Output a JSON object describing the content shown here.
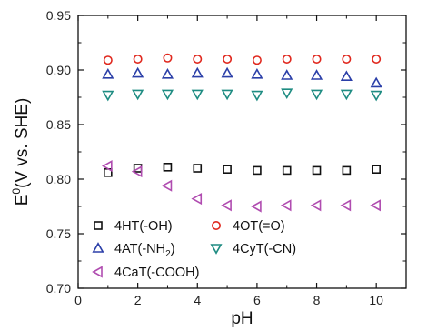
{
  "chart_data": {
    "type": "scatter",
    "xlabel": "pH",
    "ylabel": "E0(V vs. SHE)",
    "ylabel_parts": {
      "main": "E",
      "sup": "0",
      "rest": "(V vs. SHE)"
    },
    "xlim": [
      0,
      11
    ],
    "ylim": [
      0.7,
      0.95
    ],
    "xticks": [
      0,
      2,
      4,
      6,
      8,
      10
    ],
    "yticks": [
      0.7,
      0.75,
      0.8,
      0.85,
      0.9,
      0.95
    ],
    "ytick_labels": [
      "0.70",
      "0.75",
      "0.80",
      "0.85",
      "0.90",
      "0.95"
    ],
    "grid": false,
    "legend_position": "bottom-left",
    "series": [
      {
        "name": "4HT(-OH)",
        "name_parts": {
          "main": "4HT(-OH)",
          "sub": "",
          "rest": ""
        },
        "marker": "square",
        "color": "#111111",
        "x": [
          1,
          2,
          3,
          4,
          5,
          6,
          7,
          8,
          9,
          10
        ],
        "y": [
          0.806,
          0.81,
          0.811,
          0.81,
          0.809,
          0.808,
          0.808,
          0.808,
          0.808,
          0.809
        ]
      },
      {
        "name": "4OT(=O)",
        "name_parts": {
          "main": "4OT(=O)",
          "sub": "",
          "rest": ""
        },
        "marker": "circle",
        "color": "#e0281e",
        "x": [
          1,
          2,
          3,
          4,
          5,
          6,
          7,
          8,
          9,
          10
        ],
        "y": [
          0.909,
          0.91,
          0.911,
          0.91,
          0.91,
          0.909,
          0.91,
          0.91,
          0.91,
          0.91
        ]
      },
      {
        "name": "4AT(-NH2)",
        "name_parts": {
          "main": "4AT(-NH",
          "sub": "2",
          "rest": ")"
        },
        "marker": "triangle-up",
        "color": "#2b3fa8",
        "x": [
          1,
          2,
          3,
          4,
          5,
          6,
          7,
          8,
          9,
          10
        ],
        "y": [
          0.896,
          0.897,
          0.896,
          0.897,
          0.897,
          0.896,
          0.895,
          0.895,
          0.894,
          0.888
        ]
      },
      {
        "name": "4CyT(-CN)",
        "name_parts": {
          "main": "4CyT(-CN)",
          "sub": "",
          "rest": ""
        },
        "marker": "triangle-down",
        "color": "#1e8c82",
        "x": [
          1,
          2,
          3,
          4,
          5,
          6,
          7,
          8,
          9,
          10
        ],
        "y": [
          0.877,
          0.878,
          0.878,
          0.878,
          0.878,
          0.877,
          0.879,
          0.878,
          0.878,
          0.877
        ]
      },
      {
        "name": "4CaT(-COOH)",
        "name_parts": {
          "main": "4CaT(-COOH)",
          "sub": "",
          "rest": ""
        },
        "marker": "triangle-left",
        "color": "#b04cb0",
        "x": [
          1,
          2,
          3,
          4,
          5,
          6,
          7,
          8,
          9,
          10
        ],
        "y": [
          0.812,
          0.807,
          0.794,
          0.782,
          0.776,
          0.775,
          0.776,
          0.776,
          0.776,
          0.776
        ]
      }
    ]
  }
}
